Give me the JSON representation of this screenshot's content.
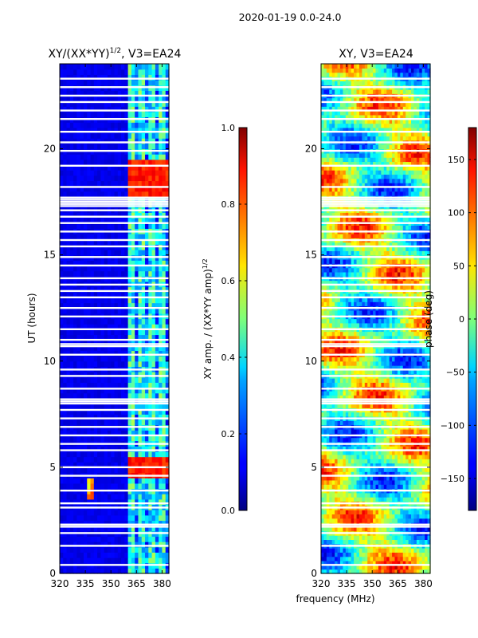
{
  "figure": {
    "suptitle": "2020-01-19 0.0-24.0",
    "shared_xlabel": "frequency (MHz)"
  },
  "colormap": "jet",
  "chart_data": [
    {
      "type": "heatmap",
      "panel": "left",
      "title": "XY/(XX*YY)¹ᐟ², V3=EA24",
      "title_base": "XY/(XX*YY)",
      "title_exp": "1/2",
      "title_tail": ", V3=EA24",
      "xlabel": "",
      "ylabel": "UT (hours)",
      "xlim": [
        320,
        384
      ],
      "ylim": [
        0,
        24
      ],
      "xticks": [
        320,
        335,
        350,
        365,
        380
      ],
      "yticks": [
        0,
        5,
        10,
        15,
        20
      ],
      "colorbar": {
        "label_base": "XY amp. / (XX*YY amp)",
        "label_exp": "1/2",
        "range": [
          0.0,
          1.0
        ],
        "ticks": [
          "0.0",
          "0.2",
          "0.4",
          "0.6",
          "0.8",
          "1.0"
        ],
        "tick_values": [
          0.0,
          0.2,
          0.4,
          0.6,
          0.8,
          1.0
        ]
      },
      "features": {
        "background_value": 0.08,
        "rfi_band_mhz": [
          361,
          384
        ],
        "rfi_band_value_range": [
          0.25,
          0.55
        ],
        "strong_rfi_times_hours": [
          [
            17.8,
            19.6
          ],
          [
            4.6,
            5.6
          ]
        ],
        "strong_rfi_value": 0.8,
        "spot_mhz": 338,
        "spot_hours": [
          3.6,
          4.4
        ],
        "spot_peak_value": 0.85
      }
    },
    {
      "type": "heatmap",
      "panel": "right",
      "title": "XY, V3=EA24",
      "xlabel": "frequency (MHz)",
      "ylabel": "",
      "xlim": [
        320,
        384
      ],
      "ylim": [
        0,
        24
      ],
      "xticks": [
        320,
        335,
        350,
        365,
        380
      ],
      "yticks": [
        0,
        5,
        10,
        15,
        20
      ],
      "colorbar": {
        "label": "phase (deg)",
        "range": [
          -180,
          180
        ],
        "ticks": [
          "−150",
          "−100",
          "−50",
          "0",
          "50",
          "100",
          "150"
        ],
        "tick_values": [
          -150,
          -100,
          -50,
          0,
          50,
          100,
          150
        ]
      }
    }
  ],
  "flagged_hours": [
    0.4,
    1.3,
    1.9,
    2.2,
    2.3,
    3.1,
    3.3,
    3.9,
    4.6,
    5.0,
    5.8,
    6.1,
    6.5,
    6.9,
    7.3,
    7.7,
    8.0,
    8.1,
    8.2,
    8.7,
    9.3,
    9.6,
    10.3,
    10.7,
    10.8,
    11.0,
    11.5,
    12.1,
    12.5,
    13.0,
    13.3,
    13.6,
    13.9,
    14.5,
    14.9,
    15.4,
    15.7,
    16.1,
    16.5,
    16.8,
    17.1,
    17.3,
    17.4,
    17.5,
    17.6,
    17.7,
    18.2,
    19.2,
    19.9,
    20.3,
    20.8,
    21.4,
    21.8,
    22.2,
    22.5,
    22.9,
    23.3
  ]
}
